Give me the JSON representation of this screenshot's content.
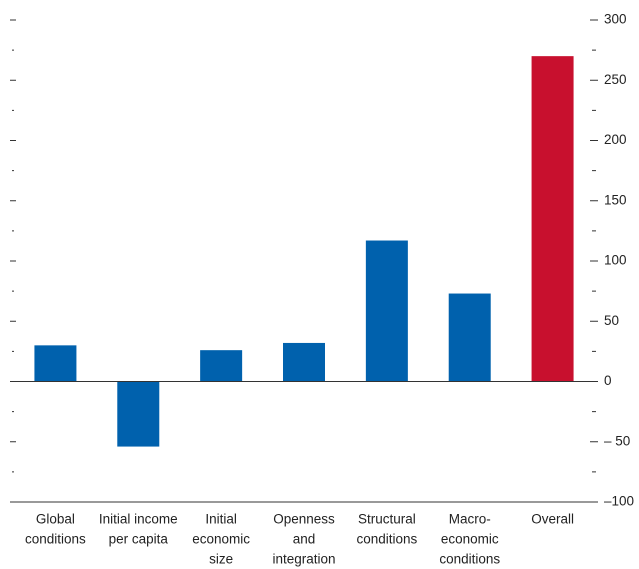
{
  "chart_data": {
    "type": "bar",
    "categories": [
      [
        "Global",
        "conditions"
      ],
      [
        "Initial income",
        "per capita"
      ],
      [
        "Initial",
        "economic",
        "size"
      ],
      [
        "Openness",
        "and",
        "integration"
      ],
      [
        "Structural",
        "conditions"
      ],
      [
        "Macro-",
        "economic",
        "conditions"
      ],
      [
        "Overall"
      ]
    ],
    "values": [
      30,
      -54,
      26,
      32,
      117,
      73,
      270
    ],
    "colors": [
      "#0061ad",
      "#0061ad",
      "#0061ad",
      "#0061ad",
      "#0061ad",
      "#0061ad",
      "#c8102e"
    ],
    "ylim": [
      -100,
      300
    ],
    "yticks": [
      {
        "value": -100,
        "label": "–100"
      },
      {
        "value": -50,
        "label": "– 50"
      },
      0,
      50,
      100,
      150,
      200,
      250,
      300
    ],
    "yminorticks": [
      -75,
      -25,
      25,
      75,
      125,
      175,
      225,
      275
    ]
  }
}
